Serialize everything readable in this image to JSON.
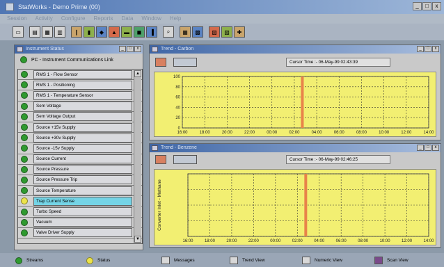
{
  "app": {
    "title": "StatWorks - Demo Prime (00)",
    "menu": [
      "Session",
      "Activity",
      "Configure",
      "Reports",
      "Data",
      "Window",
      "Help"
    ],
    "window_controls": [
      "_",
      "□",
      "x"
    ]
  },
  "toolbar": {
    "buttons": [
      "new",
      "open",
      "save",
      "print",
      "cut",
      "copy",
      "paste",
      "chart",
      "trend",
      "stats",
      "report",
      "help",
      "info",
      "grid",
      "scan",
      "export",
      "settings"
    ]
  },
  "status_panel": {
    "title": "Instrument Status",
    "comm_link": "PC - Instrument Communications Link",
    "items": [
      {
        "label": "RMS 1 - Flow Sensor",
        "status": "green",
        "selected": false
      },
      {
        "label": "RMS 1 - Positioning",
        "status": "green",
        "selected": false
      },
      {
        "label": "RMS 1 - Temperature Sensor",
        "status": "green",
        "selected": false
      },
      {
        "label": "Sem Voltage",
        "status": "green",
        "selected": false
      },
      {
        "label": "Sem Voltage Output",
        "status": "green",
        "selected": false
      },
      {
        "label": "Source +15v Supply",
        "status": "green",
        "selected": false
      },
      {
        "label": "Source +30v Supply",
        "status": "green",
        "selected": false
      },
      {
        "label": "Source -15v Supply",
        "status": "green",
        "selected": false
      },
      {
        "label": "Source Current",
        "status": "green",
        "selected": false
      },
      {
        "label": "Source Pressure",
        "status": "green",
        "selected": false
      },
      {
        "label": "Source Pressure Trip",
        "status": "green",
        "selected": false
      },
      {
        "label": "Source Temperature",
        "status": "green",
        "selected": false
      },
      {
        "label": "Trap Current Sense",
        "status": "yellow",
        "selected": true
      },
      {
        "label": "Turbo Speed",
        "status": "green",
        "selected": false
      },
      {
        "label": "Vacuum",
        "status": "green",
        "selected": false
      },
      {
        "label": "Valve Driver Supply",
        "status": "green",
        "selected": false
      }
    ]
  },
  "trend1": {
    "title": "Trend - Carbon",
    "cursor_text": "Cursor Time :- 06-May-99 02:43:39"
  },
  "trend2": {
    "title": "Trend - Benzene",
    "cursor_text": "Cursor Time :- 06-May-99 02:46:25"
  },
  "colors": {
    "chart_bg": "#f2ef72",
    "cursor_line": "#e8834a",
    "status_green": "#2f9a2f",
    "status_yellow": "#ece34a",
    "selected_row": "#74d4e6"
  },
  "chart_data": [
    {
      "type": "line",
      "title": "Trend - Carbon",
      "x": [
        "16:00",
        "18:00",
        "20:00",
        "22:00",
        "00:00",
        "02:00",
        "04:00",
        "06:00",
        "08:00",
        "10:00",
        "12:00",
        "14:00"
      ],
      "y_ticks": [
        "0",
        "20",
        "40",
        "60",
        "80",
        "100"
      ],
      "ylim": [
        0,
        100
      ],
      "ylabel": "",
      "cursor_x": "02:43",
      "grid": true,
      "series": []
    },
    {
      "type": "line",
      "title": "Trend - Benzene",
      "x": [
        "16:00",
        "18:00",
        "20:00",
        "22:00",
        "00:00",
        "02:00",
        "04:00",
        "06:00",
        "08:00",
        "10:00",
        "12:00",
        "14:00"
      ],
      "ylabel": "Converter Inlet - Methane",
      "cursor_x": "02:46",
      "grid": true,
      "series": []
    }
  ],
  "taskbar": {
    "items": [
      {
        "label": "Streams",
        "icon": "green-dot-icon"
      },
      {
        "label": "Status",
        "icon": "yellow-dot-icon"
      },
      {
        "label": "Messages",
        "icon": "messages-icon"
      },
      {
        "label": "Trend View",
        "icon": "trend-icon"
      },
      {
        "label": "Numeric View",
        "icon": "numeric-icon"
      },
      {
        "label": "Scan View",
        "icon": "scan-icon"
      }
    ]
  }
}
